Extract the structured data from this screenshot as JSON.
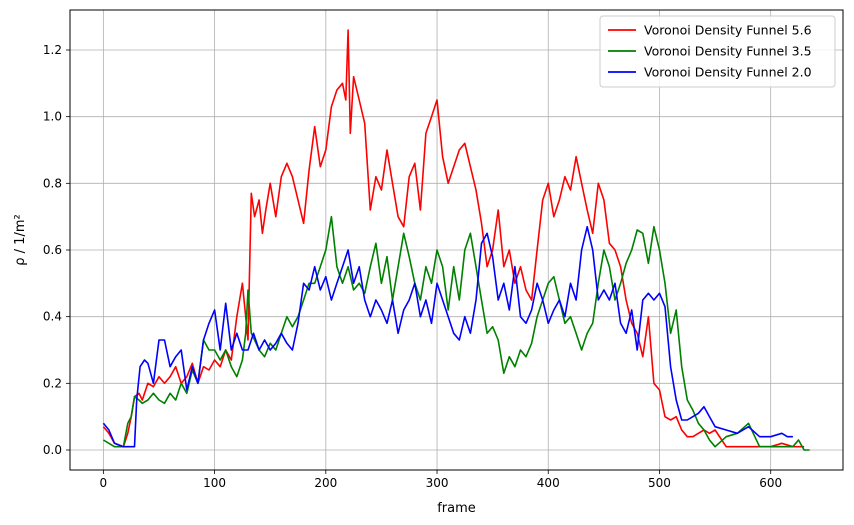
{
  "chart_data": {
    "type": "line",
    "xlabel": "frame",
    "ylabel": "ρ / 1/m²",
    "xlim": [
      -30,
      665
    ],
    "ylim": [
      -0.06,
      1.32
    ],
    "xticks": [
      0,
      100,
      200,
      300,
      400,
      500,
      600
    ],
    "yticks": [
      0.0,
      0.2,
      0.4,
      0.6,
      0.8,
      1.0,
      1.2
    ],
    "xtick_labels": [
      "0",
      "100",
      "200",
      "300",
      "400",
      "500",
      "600"
    ],
    "ytick_labels": [
      "0.0",
      "0.2",
      "0.4",
      "0.6",
      "0.8",
      "1.0",
      "1.2"
    ],
    "grid": true,
    "legend_position": "top-right",
    "series": [
      {
        "name": "Voronoi Density Funnel 5.6",
        "color": "#ff0000",
        "x": [
          0,
          5,
          10,
          18,
          22,
          25,
          28,
          32,
          35,
          40,
          45,
          50,
          55,
          60,
          65,
          70,
          75,
          80,
          85,
          90,
          95,
          100,
          105,
          110,
          115,
          120,
          125,
          128,
          130,
          133,
          136,
          140,
          143,
          146,
          150,
          155,
          160,
          165,
          170,
          175,
          180,
          185,
          190,
          195,
          200,
          205,
          210,
          215,
          218,
          220,
          222,
          225,
          230,
          235,
          240,
          245,
          250,
          255,
          260,
          265,
          270,
          275,
          280,
          285,
          290,
          295,
          300,
          305,
          310,
          315,
          320,
          325,
          330,
          335,
          340,
          345,
          350,
          355,
          360,
          365,
          370,
          375,
          380,
          385,
          390,
          395,
          400,
          405,
          410,
          415,
          420,
          425,
          430,
          435,
          440,
          445,
          450,
          455,
          460,
          465,
          470,
          475,
          480,
          485,
          490,
          495,
          500,
          505,
          510,
          515,
          520,
          525,
          530,
          535,
          540,
          545,
          550,
          560,
          570,
          580,
          590,
          600,
          610,
          620,
          630
        ],
        "values": [
          0.07,
          0.05,
          0.02,
          0.01,
          0.05,
          0.1,
          0.16,
          0.17,
          0.15,
          0.2,
          0.19,
          0.22,
          0.2,
          0.22,
          0.25,
          0.2,
          0.22,
          0.26,
          0.2,
          0.25,
          0.24,
          0.27,
          0.25,
          0.3,
          0.27,
          0.4,
          0.5,
          0.4,
          0.33,
          0.77,
          0.7,
          0.75,
          0.65,
          0.72,
          0.8,
          0.7,
          0.82,
          0.86,
          0.82,
          0.75,
          0.68,
          0.84,
          0.97,
          0.85,
          0.9,
          1.03,
          1.08,
          1.1,
          1.05,
          1.26,
          0.95,
          1.12,
          1.05,
          0.98,
          0.72,
          0.82,
          0.78,
          0.9,
          0.8,
          0.7,
          0.67,
          0.82,
          0.86,
          0.72,
          0.95,
          1.0,
          1.05,
          0.88,
          0.8,
          0.85,
          0.9,
          0.92,
          0.85,
          0.78,
          0.68,
          0.55,
          0.6,
          0.72,
          0.55,
          0.6,
          0.5,
          0.55,
          0.48,
          0.45,
          0.6,
          0.75,
          0.8,
          0.7,
          0.75,
          0.82,
          0.78,
          0.88,
          0.8,
          0.72,
          0.65,
          0.8,
          0.75,
          0.62,
          0.6,
          0.55,
          0.45,
          0.38,
          0.35,
          0.28,
          0.4,
          0.2,
          0.18,
          0.1,
          0.09,
          0.1,
          0.06,
          0.04,
          0.04,
          0.05,
          0.06,
          0.05,
          0.06,
          0.01,
          0.01,
          0.01,
          0.01,
          0.01,
          0.02,
          0.01,
          0.01
        ]
      },
      {
        "name": "Voronoi Density Funnel 3.5",
        "color": "#008000",
        "x": [
          0,
          5,
          10,
          18,
          22,
          25,
          28,
          32,
          35,
          40,
          45,
          50,
          55,
          60,
          65,
          70,
          75,
          80,
          85,
          90,
          95,
          100,
          105,
          110,
          115,
          120,
          125,
          128,
          130,
          133,
          136,
          140,
          145,
          150,
          155,
          160,
          165,
          170,
          175,
          180,
          185,
          190,
          195,
          200,
          205,
          210,
          215,
          220,
          225,
          230,
          235,
          240,
          245,
          250,
          255,
          260,
          265,
          270,
          275,
          280,
          285,
          290,
          295,
          300,
          305,
          310,
          315,
          320,
          325,
          330,
          335,
          340,
          345,
          350,
          355,
          360,
          365,
          370,
          375,
          380,
          385,
          390,
          395,
          400,
          405,
          410,
          415,
          420,
          425,
          430,
          435,
          440,
          445,
          450,
          455,
          460,
          465,
          470,
          475,
          480,
          485,
          490,
          495,
          500,
          505,
          510,
          515,
          520,
          525,
          530,
          535,
          540,
          545,
          550,
          560,
          570,
          580,
          590,
          600,
          610,
          620,
          625,
          630,
          635
        ],
        "values": [
          0.03,
          0.02,
          0.01,
          0.01,
          0.08,
          0.1,
          0.16,
          0.15,
          0.14,
          0.15,
          0.17,
          0.15,
          0.14,
          0.17,
          0.15,
          0.2,
          0.17,
          0.24,
          0.2,
          0.33,
          0.3,
          0.3,
          0.27,
          0.3,
          0.25,
          0.22,
          0.27,
          0.35,
          0.48,
          0.35,
          0.33,
          0.3,
          0.28,
          0.32,
          0.3,
          0.35,
          0.4,
          0.37,
          0.4,
          0.45,
          0.5,
          0.5,
          0.55,
          0.6,
          0.7,
          0.55,
          0.5,
          0.55,
          0.48,
          0.5,
          0.47,
          0.55,
          0.62,
          0.5,
          0.58,
          0.45,
          0.55,
          0.65,
          0.58,
          0.5,
          0.45,
          0.55,
          0.5,
          0.6,
          0.55,
          0.42,
          0.55,
          0.45,
          0.6,
          0.65,
          0.55,
          0.45,
          0.35,
          0.37,
          0.33,
          0.23,
          0.28,
          0.25,
          0.3,
          0.28,
          0.32,
          0.4,
          0.45,
          0.5,
          0.52,
          0.45,
          0.38,
          0.4,
          0.35,
          0.3,
          0.35,
          0.38,
          0.5,
          0.6,
          0.55,
          0.45,
          0.5,
          0.56,
          0.6,
          0.66,
          0.65,
          0.56,
          0.67,
          0.6,
          0.5,
          0.35,
          0.42,
          0.25,
          0.15,
          0.12,
          0.08,
          0.06,
          0.03,
          0.01,
          0.04,
          0.05,
          0.08,
          0.01,
          0.01,
          0.01,
          0.01,
          0.03,
          0.0,
          0.0
        ]
      },
      {
        "name": "Voronoi Density Funnel 2.0",
        "color": "#0000ff",
        "x": [
          0,
          5,
          10,
          18,
          22,
          25,
          28,
          30,
          33,
          37,
          40,
          45,
          50,
          55,
          60,
          65,
          70,
          75,
          80,
          85,
          90,
          95,
          100,
          105,
          110,
          115,
          120,
          125,
          130,
          135,
          140,
          145,
          150,
          155,
          160,
          165,
          170,
          175,
          180,
          185,
          190,
          195,
          200,
          205,
          210,
          215,
          220,
          225,
          230,
          235,
          240,
          245,
          250,
          255,
          260,
          265,
          270,
          275,
          280,
          285,
          290,
          295,
          300,
          305,
          310,
          315,
          320,
          325,
          330,
          335,
          340,
          345,
          350,
          355,
          360,
          365,
          370,
          375,
          380,
          385,
          390,
          395,
          400,
          405,
          410,
          415,
          420,
          425,
          430,
          435,
          440,
          445,
          450,
          455,
          460,
          465,
          470,
          475,
          480,
          485,
          490,
          495,
          500,
          505,
          510,
          515,
          520,
          525,
          530,
          535,
          540,
          545,
          550,
          560,
          570,
          580,
          590,
          600,
          610,
          615,
          620
        ],
        "values": [
          0.08,
          0.06,
          0.02,
          0.01,
          0.01,
          0.01,
          0.01,
          0.15,
          0.25,
          0.27,
          0.26,
          0.2,
          0.33,
          0.33,
          0.25,
          0.28,
          0.3,
          0.18,
          0.25,
          0.2,
          0.33,
          0.38,
          0.42,
          0.3,
          0.44,
          0.3,
          0.35,
          0.3,
          0.3,
          0.35,
          0.3,
          0.33,
          0.3,
          0.32,
          0.35,
          0.32,
          0.3,
          0.38,
          0.5,
          0.48,
          0.55,
          0.48,
          0.52,
          0.45,
          0.5,
          0.55,
          0.6,
          0.5,
          0.55,
          0.45,
          0.4,
          0.45,
          0.42,
          0.38,
          0.45,
          0.35,
          0.42,
          0.45,
          0.5,
          0.4,
          0.45,
          0.38,
          0.5,
          0.45,
          0.4,
          0.35,
          0.33,
          0.4,
          0.35,
          0.45,
          0.62,
          0.65,
          0.58,
          0.45,
          0.5,
          0.42,
          0.55,
          0.4,
          0.38,
          0.42,
          0.5,
          0.45,
          0.38,
          0.42,
          0.45,
          0.4,
          0.5,
          0.45,
          0.6,
          0.67,
          0.6,
          0.45,
          0.48,
          0.45,
          0.5,
          0.38,
          0.35,
          0.42,
          0.3,
          0.45,
          0.47,
          0.45,
          0.47,
          0.43,
          0.25,
          0.15,
          0.09,
          0.09,
          0.1,
          0.11,
          0.13,
          0.1,
          0.07,
          0.06,
          0.05,
          0.07,
          0.04,
          0.04,
          0.05,
          0.04,
          0.04
        ]
      }
    ]
  }
}
